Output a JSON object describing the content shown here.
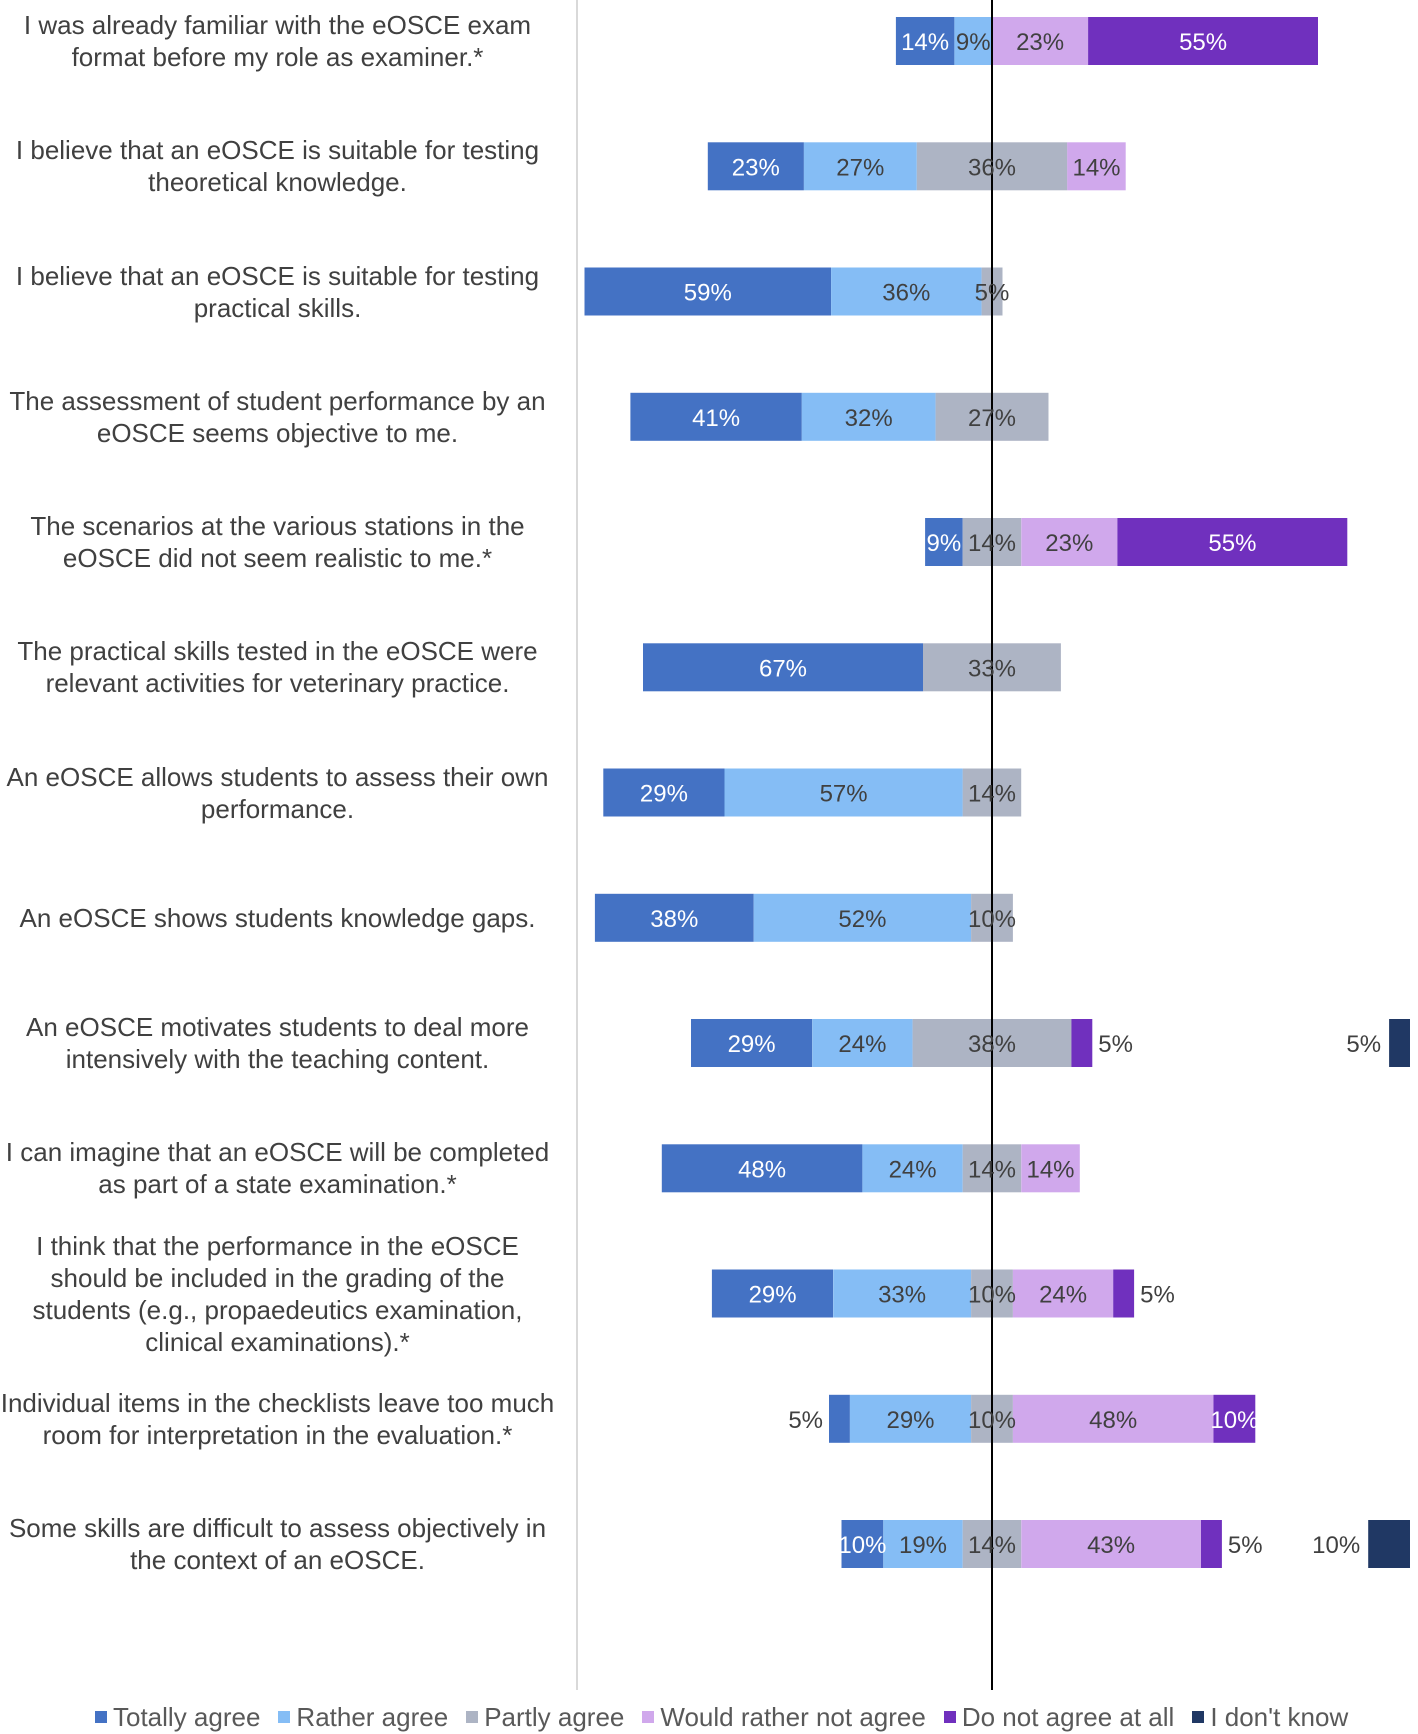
{
  "chart_data": {
    "type": "diverging-stacked-bar",
    "orientation": "horizontal",
    "xlabel": "",
    "ylabel": "",
    "legend_position": "bottom",
    "series": [
      {
        "name": "Totally agree",
        "color": "#4472C4"
      },
      {
        "name": "Rather agree",
        "color": "#85BDF5"
      },
      {
        "name": "Partly agree",
        "color": "#ADB4C4"
      },
      {
        "name": "Would rather not agree",
        "color": "#D0A8EC"
      },
      {
        "name": "Do not agree at all",
        "color": "#7030BE"
      },
      {
        "name": "I don't know",
        "color": "#203864"
      }
    ],
    "items": [
      {
        "question": "I was already familiar with the eOSCE exam format before my role as examiner.*",
        "values": [
          14,
          9,
          0,
          23,
          55,
          0
        ],
        "labels": [
          "14%",
          "9%",
          "",
          "23%",
          "55%",
          ""
        ]
      },
      {
        "question": "I believe that an eOSCE is suitable for testing theoretical knowledge.",
        "values": [
          23,
          27,
          36,
          14,
          0,
          0
        ],
        "labels": [
          "23%",
          "27%",
          "36%",
          "14%",
          "",
          ""
        ]
      },
      {
        "question": "I believe that an eOSCE is suitable for testing practical skills.",
        "values": [
          59,
          36,
          5,
          0,
          0,
          0
        ],
        "labels": [
          "59%",
          "36%",
          "5%",
          "",
          "",
          ""
        ]
      },
      {
        "question": "The assessment of student performance by an eOSCE seems objective to me.",
        "values": [
          41,
          32,
          27,
          0,
          0,
          0
        ],
        "labels": [
          "41%",
          "32%",
          "27%",
          "",
          "",
          ""
        ]
      },
      {
        "question": "The scenarios at the various stations in the eOSCE did not seem realistic to me.*",
        "values": [
          9,
          0,
          14,
          23,
          55,
          0
        ],
        "labels": [
          "9%",
          "",
          "14%",
          "23%",
          "55%",
          ""
        ]
      },
      {
        "question": "The practical skills tested in the eOSCE were relevant activities for veterinary practice.",
        "values": [
          67,
          0,
          33,
          0,
          0,
          0
        ],
        "labels": [
          "67%",
          "",
          "33%",
          "",
          "",
          ""
        ]
      },
      {
        "question": "An eOSCE allows students to assess their own performance.",
        "values": [
          29,
          57,
          14,
          0,
          0,
          0
        ],
        "labels": [
          "29%",
          "57%",
          "14%",
          "",
          "",
          ""
        ]
      },
      {
        "question": "An eOSCE shows students knowledge gaps.",
        "values": [
          38,
          52,
          10,
          0,
          0,
          0
        ],
        "labels": [
          "38%",
          "52%",
          "10%",
          "",
          "",
          ""
        ]
      },
      {
        "question": "An eOSCE motivates students to deal more intensively with the teaching content.",
        "values": [
          29,
          24,
          38,
          0,
          5,
          5
        ],
        "labels": [
          "29%",
          "24%",
          "38%",
          "",
          "5%",
          "5%"
        ]
      },
      {
        "question": "I can imagine that an eOSCE will be completed as part of a state examination.*",
        "values": [
          48,
          24,
          14,
          14,
          0,
          0
        ],
        "labels": [
          "48%",
          "24%",
          "14%",
          "14%",
          "",
          ""
        ]
      },
      {
        "question": "I think that the performance in the eOSCE should be included in the grading of the students (e.g., propaedeutics examination, clinical examinations).*",
        "values": [
          29,
          33,
          10,
          24,
          5,
          0
        ],
        "labels": [
          "29%",
          "33%",
          "10%",
          "24%",
          "5%",
          ""
        ]
      },
      {
        "question": "Individual items in the checklists leave too much room for interpretation in the evaluation.*",
        "values": [
          5,
          29,
          10,
          48,
          10,
          0
        ],
        "labels": [
          "5%",
          "29%",
          "10%",
          "48%",
          "10%",
          ""
        ]
      },
      {
        "question": "Some skills are difficult to assess objectively in the context of an eOSCE.",
        "values": [
          10,
          19,
          14,
          43,
          5,
          10
        ],
        "labels": [
          "10%",
          "19%",
          "14%",
          "43%",
          "5%",
          "10%"
        ]
      }
    ]
  }
}
